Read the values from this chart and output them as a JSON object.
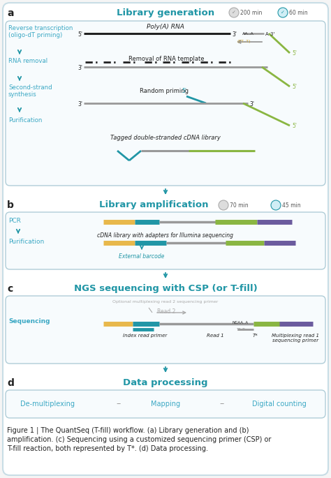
{
  "title_a": "Library generation",
  "title_b": "Library amplification",
  "title_c": "NGS sequencing with CSP (or T-fill)",
  "title_d": "Data processing",
  "time_a1": "200 min",
  "time_a2": "60 min",
  "time_b1": "70 min",
  "time_b2": "45 min",
  "bg_color": "#f5f5f5",
  "box_facecolor": "#f7fbfd",
  "box_edgecolor": "#b0cdd8",
  "teal": "#2196A6",
  "green": "#8ab642",
  "gray_line": "#999999",
  "yellow": "#e8b84b",
  "purple": "#6b5b9e",
  "dark_gray": "#555555",
  "light_gray": "#aaaaaa",
  "blue_text": "#3ba8c4",
  "black": "#222222",
  "caption_bold_parts": [
    "Figure 1",
    "a",
    "b",
    "c",
    "d"
  ]
}
